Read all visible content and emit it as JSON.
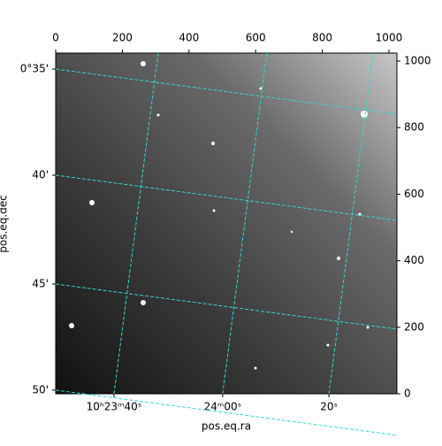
{
  "chart_data": {
    "type": "image",
    "xlabel": "pos.eq.ra",
    "ylabel": "pos.eq.dec",
    "xlim": [
      0,
      1024
    ],
    "ylim": [
      0,
      1024
    ],
    "xticks": [
      0,
      200,
      400,
      600,
      800,
      1000
    ],
    "yticks": [
      0,
      200,
      400,
      600,
      800,
      1000
    ],
    "ra_ticks": [
      {
        "value": 175,
        "label": "10ʰ23ᵐ40ˢ"
      },
      {
        "value": 501,
        "label": "24ᵐ00ˢ"
      },
      {
        "value": 820,
        "label": "20ˢ"
      }
    ],
    "dec_ticks": [
      {
        "value": 976,
        "label": "0°35'"
      },
      {
        "value": 657,
        "label": "40'"
      },
      {
        "value": 330,
        "label": "45'"
      },
      {
        "value": 11,
        "label": "50'"
      }
    ],
    "grid": true,
    "grid_color": "#33d6d6"
  }
}
